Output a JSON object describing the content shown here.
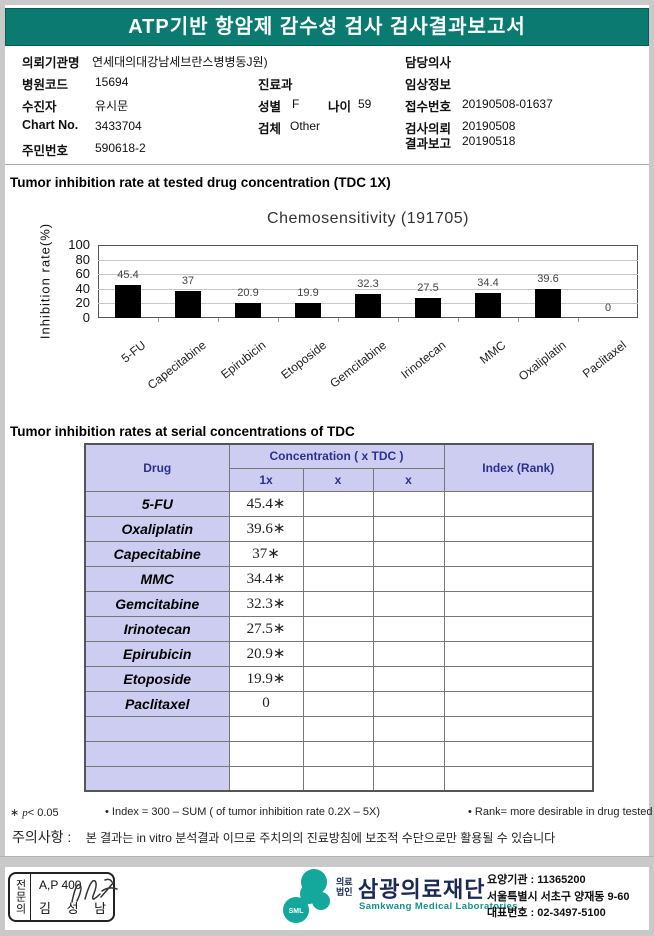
{
  "header": {
    "title": "ATP기반 항암제 감수성 검사 검사결과보고서"
  },
  "info": {
    "col1": [
      {
        "label": "의뢰기관명",
        "value": "연세대의대강남세브란스병병동J원)"
      },
      {
        "label": "병원코드",
        "value": "15694"
      },
      {
        "label": "수진자",
        "value": "유시문"
      },
      {
        "label": "Chart No.",
        "value": "3433704"
      },
      {
        "label": "주민번호",
        "value": "590618-2"
      }
    ],
    "col2": [
      {
        "label": "진료과",
        "value": ""
      },
      {
        "label": "성별",
        "value": "F"
      },
      {
        "label": "나이",
        "value": "59"
      },
      {
        "label": "검체",
        "value": "Other"
      }
    ],
    "col3": [
      {
        "label": "담당의사",
        "value": ""
      },
      {
        "label": "임상정보",
        "value": ""
      },
      {
        "label": "접수번호",
        "value": "20190508-01637"
      },
      {
        "label": "검사의뢰",
        "value": "20190508"
      },
      {
        "label": "결과보고",
        "value": "20190518"
      }
    ]
  },
  "sections": {
    "tdc1x_title": "Tumor inhibition rate at tested drug concentration (TDC 1X)",
    "serial_title": "Tumor inhibition rates at serial concentrations of TDC"
  },
  "chart_data": {
    "type": "bar",
    "title": "Chemosensitivity (191705)",
    "ylabel": "Inhibition rate(%)",
    "categories": [
      "5-FU",
      "Capecitabine",
      "Epirubicin",
      "Etoposide",
      "Gemcitabine",
      "Irinotecan",
      "MMC",
      "Oxaliplatin",
      "Paclitaxel"
    ],
    "values": [
      45.4,
      37,
      20.9,
      19.9,
      32.3,
      27.5,
      34.4,
      39.6,
      0
    ],
    "ylim": [
      0,
      100
    ],
    "yticks": [
      0,
      20,
      40,
      60,
      80,
      100
    ],
    "bar_color": "#000000",
    "grid": true,
    "legend": "none"
  },
  "table": {
    "col_drug": "Drug",
    "col_concentration": "Concentration ( x TDC )",
    "col_1x": "1x",
    "col_x2": "x",
    "col_x3": "x",
    "col_index": "Index (Rank)",
    "rows": [
      {
        "drug": "5-FU",
        "c1": "45.4∗",
        "c2": "",
        "c3": "",
        "index": ""
      },
      {
        "drug": "Oxaliplatin",
        "c1": "39.6∗",
        "c2": "",
        "c3": "",
        "index": ""
      },
      {
        "drug": "Capecitabine",
        "c1": "37∗",
        "c2": "",
        "c3": "",
        "index": ""
      },
      {
        "drug": "MMC",
        "c1": "34.4∗",
        "c2": "",
        "c3": "",
        "index": ""
      },
      {
        "drug": "Gemcitabine",
        "c1": "32.3∗",
        "c2": "",
        "c3": "",
        "index": ""
      },
      {
        "drug": "Irinotecan",
        "c1": "27.5∗",
        "c2": "",
        "c3": "",
        "index": ""
      },
      {
        "drug": "Epirubicin",
        "c1": "20.9∗",
        "c2": "",
        "c3": "",
        "index": ""
      },
      {
        "drug": "Etoposide",
        "c1": "19.9∗",
        "c2": "",
        "c3": "",
        "index": ""
      },
      {
        "drug": "Paclitaxel",
        "c1": "0",
        "c2": "",
        "c3": "",
        "index": ""
      },
      {
        "drug": "",
        "c1": "",
        "c2": "",
        "c3": "",
        "index": ""
      },
      {
        "drug": "",
        "c1": "",
        "c2": "",
        "c3": "",
        "index": ""
      },
      {
        "drug": "",
        "c1": "",
        "c2": "",
        "c3": "",
        "index": ""
      }
    ]
  },
  "footnotes": {
    "star": "∗",
    "p_italic": "p",
    "p_rest": "< 0.05",
    "index_note": "• Index = 300 – SUM ( of tumor inhibition rate 0.2X  –  5X)",
    "rank_note": "• Rank= more desirable in drug tested",
    "caution_label": "주의사항 :",
    "caution_text": "본 결과는 in vitro 분석결과 이므로 주치의의 진료방침에 보조적 수단으로만 활용될 수 있습니다"
  },
  "footer": {
    "sign": {
      "side": "전문의",
      "code": "A,P 400",
      "name": "김 성 남"
    },
    "logo": {
      "abbr": "SML",
      "type_line1": "의료",
      "type_line2": "법인",
      "name_kr": "삼광의료재단",
      "name_en": "Samkwang Medical Laboratories"
    },
    "contact": {
      "line1": "요양기관 : 11365200",
      "line2": "서울특별시 서초구 양재동 9-60",
      "line3": "대표번호 : 02-3497-5100"
    }
  },
  "colors": {
    "header_teal": "#0b7b71",
    "logo_teal": "#14a79b",
    "table_header_bg": "#cdcdf2",
    "table_header_text": "#2b2f90",
    "bar_black": "#000000"
  }
}
